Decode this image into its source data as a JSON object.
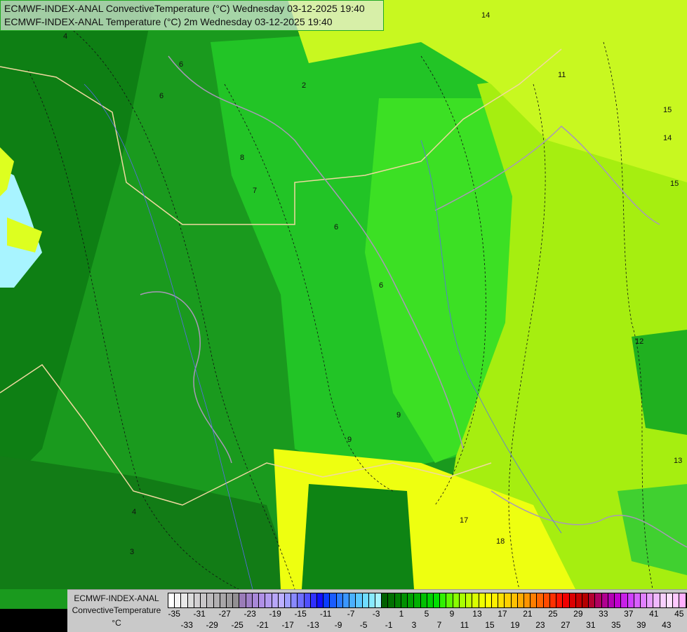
{
  "header": {
    "line1": "ECMWF-INDEX-ANAL ConvectiveTemperature (°C) Wednesday 03-12-2025 19:40",
    "line2": "ECMWF-INDEX-ANAL Temperature (°C) 2m Wednesday 03-12-2025 19:40"
  },
  "legend": {
    "title1": "ECMWF-INDEX-ANAL",
    "title2": "ConvectiveTemperature",
    "unit": "°C",
    "labels": [
      "-35",
      "-33",
      "-31",
      "-29",
      "-27",
      "-25",
      "-23",
      "-21",
      "-19",
      "-17",
      "-15",
      "-13",
      "-11",
      "-9",
      "-7",
      "-5",
      "-3",
      "-1",
      "1",
      "3",
      "5",
      "7",
      "9",
      "11",
      "13",
      "15",
      "17",
      "19",
      "21",
      "23",
      "25",
      "27",
      "29",
      "31",
      "33",
      "35",
      "37",
      "39",
      "41",
      "43",
      "45"
    ],
    "colors": [
      "#ffffff",
      "#f4f4f4",
      "#e8e8e8",
      "#dcdcdc",
      "#d2d0d2",
      "#c8c6c8",
      "#bcbabc",
      "#b2b0b2",
      "#a8a6a8",
      "#9e9c9e",
      "#928f92",
      "#9a7cb8",
      "#a080c8",
      "#a888d8",
      "#b090e6",
      "#b49cf0",
      "#b8a6f8",
      "#bcb0ff",
      "#a0a0ff",
      "#8888ff",
      "#6e6eff",
      "#5050ff",
      "#3030ff",
      "#1010ff",
      "#0a3cff",
      "#1a5cff",
      "#2a7cff",
      "#3a96ff",
      "#4ab0ff",
      "#5cc8ff",
      "#70dcff",
      "#88eaff",
      "#a8f4ff",
      "#006000",
      "#007000",
      "#008000",
      "#009000",
      "#00a000",
      "#00b000",
      "#00c000",
      "#00d000",
      "#00e000",
      "#30f000",
      "#60f800",
      "#88ff00",
      "#a8ff00",
      "#c0ff00",
      "#d8ff00",
      "#eeff00",
      "#ffff00",
      "#fff000",
      "#ffe000",
      "#ffd000",
      "#ffc000",
      "#ffaa00",
      "#ff9400",
      "#ff7e00",
      "#ff6400",
      "#ff4a00",
      "#ff3000",
      "#ff1400",
      "#f00000",
      "#dc0000",
      "#c80000",
      "#b40000",
      "#b40030",
      "#b00060",
      "#b00090",
      "#b400b4",
      "#c000d0",
      "#c820e8",
      "#d040ff",
      "#d860ff",
      "#e080ff",
      "#e8a0ff",
      "#f0b8ff",
      "#f8d0ff",
      "#ffe0ff",
      "#ffc8ff",
      "#ffb0ff"
    ]
  },
  "map": {
    "contour_labels": [
      "14",
      "6",
      "2",
      "8",
      "7",
      "6",
      "6",
      "11",
      "15",
      "14",
      "15",
      "12",
      "13",
      "17",
      "18",
      "9",
      "4",
      "3",
      "6",
      "9",
      "4"
    ],
    "palette": {
      "dark_green": "#0a7a10",
      "mid_green": "#1aa620",
      "green": "#20c020",
      "bright_green": "#30e020",
      "lime": "#a8f000",
      "yellow_green": "#ccff20",
      "yellow": "#f0ff00",
      "water": "#a8f4ff"
    }
  }
}
